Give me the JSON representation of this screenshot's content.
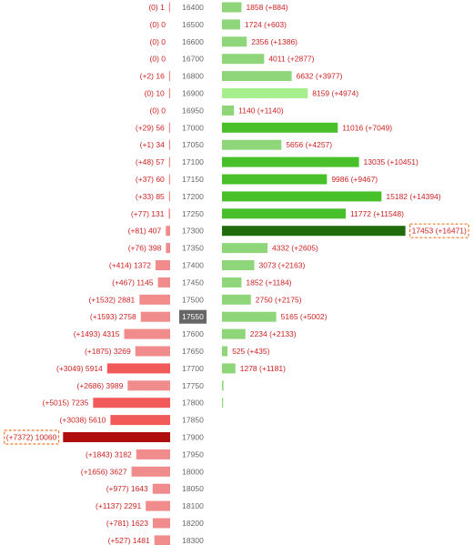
{
  "chart_data": {
    "type": "bar",
    "description_axis": "strike",
    "highlight_strike": "17550",
    "colors": {
      "put_light": "#f08c8c",
      "put_mid": "#f25a5a",
      "put_dark": "#b00d0d",
      "call_light": "#8fd67a",
      "call_mid": "#47c02a",
      "call_dark": "#1f6b0e",
      "label": "#cc2222",
      "highlight_bg": "#666666",
      "highlight_box": "#f07a2a"
    },
    "rows": [
      {
        "strike": "16400",
        "put": 1,
        "put_change": 0,
        "put_label": "(0) 1",
        "call": 1858,
        "call_change": 884,
        "call_label": "1858 (+884)"
      },
      {
        "strike": "16500",
        "put": 0,
        "put_change": 0,
        "put_label": "(0) 0",
        "call": 1724,
        "call_change": 603,
        "call_label": "1724 (+603)"
      },
      {
        "strike": "16600",
        "put": 0,
        "put_change": 0,
        "put_label": "(0) 0",
        "call": 2356,
        "call_change": 1386,
        "call_label": "2356 (+1386)"
      },
      {
        "strike": "16700",
        "put": 0,
        "put_change": 0,
        "put_label": "(0) 0",
        "call": 4011,
        "call_change": 2877,
        "call_label": "4011 (+2877)"
      },
      {
        "strike": "16800",
        "put": 16,
        "put_change": 2,
        "put_label": "(+2) 16",
        "call": 6632,
        "call_change": 3977,
        "call_label": "6632 (+3977)"
      },
      {
        "strike": "16900",
        "put": 10,
        "put_change": 0,
        "put_label": "(0) 10",
        "call": 8159,
        "call_change": 4974,
        "call_label": "8159 (+4974)"
      },
      {
        "strike": "16950",
        "put": 0,
        "put_change": 0,
        "put_label": "(0) 0",
        "call": 1140,
        "call_change": 1140,
        "call_label": "1140 (+1140)"
      },
      {
        "strike": "17000",
        "put": 56,
        "put_change": 29,
        "put_label": "(+29) 56",
        "call": 11016,
        "call_change": 7049,
        "call_label": "11016 (+7049)"
      },
      {
        "strike": "17050",
        "put": 34,
        "put_change": 1,
        "put_label": "(+1) 34",
        "call": 5656,
        "call_change": 4257,
        "call_label": "5656 (+4257)"
      },
      {
        "strike": "17100",
        "put": 57,
        "put_change": 48,
        "put_label": "(+48) 57",
        "call": 13035,
        "call_change": 10451,
        "call_label": "13035 (+10451)"
      },
      {
        "strike": "17150",
        "put": 60,
        "put_change": 37,
        "put_label": "(+37) 60",
        "call": 9986,
        "call_change": 9467,
        "call_label": "9986 (+9467)"
      },
      {
        "strike": "17200",
        "put": 85,
        "put_change": 33,
        "put_label": "(+33) 85",
        "call": 15182,
        "call_change": 14394,
        "call_label": "15182 (+14394)"
      },
      {
        "strike": "17250",
        "put": 131,
        "put_change": 77,
        "put_label": "(+77) 131",
        "call": 11772,
        "call_change": 11548,
        "call_label": "11772 (+11548)"
      },
      {
        "strike": "17300",
        "put": 407,
        "put_change": 81,
        "put_label": "(+81) 407",
        "call": 17453,
        "call_change": 16471,
        "call_label": "17453 (+16471)",
        "call_max": true
      },
      {
        "strike": "17350",
        "put": 398,
        "put_change": 76,
        "put_label": "(+76) 398",
        "call": 4332,
        "call_change": 2605,
        "call_label": "4332 (+2605)"
      },
      {
        "strike": "17400",
        "put": 1372,
        "put_change": 414,
        "put_label": "(+414) 1372",
        "call": 3073,
        "call_change": 2163,
        "call_label": "3073 (+2163)"
      },
      {
        "strike": "17450",
        "put": 1145,
        "put_change": 467,
        "put_label": "(+467) 1145",
        "call": 1852,
        "call_change": 1184,
        "call_label": "1852 (+1184)"
      },
      {
        "strike": "17500",
        "put": 2881,
        "put_change": 1532,
        "put_label": "(+1532) 2881",
        "call": 2750,
        "call_change": 2175,
        "call_label": "2750 (+2175)"
      },
      {
        "strike": "17550",
        "put": 2758,
        "put_change": 1593,
        "put_label": "(+1593) 2758",
        "call": 5165,
        "call_change": 5002,
        "call_label": "5165 (+5002)"
      },
      {
        "strike": "17600",
        "put": 4315,
        "put_change": 1493,
        "put_label": "(+1493) 4315",
        "call": 2234,
        "call_change": 2133,
        "call_label": "2234 (+2133)"
      },
      {
        "strike": "17650",
        "put": 3269,
        "put_change": 1875,
        "put_label": "(+1875) 3269",
        "call": 525,
        "call_change": 435,
        "call_label": "525 (+435)"
      },
      {
        "strike": "17700",
        "put": 5914,
        "put_change": 3049,
        "put_label": "(+3049) 5914",
        "call": 1278,
        "call_change": 1181,
        "call_label": "1278 (+1181)"
      },
      {
        "strike": "17750",
        "put": 3989,
        "put_change": 2686,
        "put_label": "(+2686) 3989",
        "call": 140,
        "call_change": null,
        "call_label": ""
      },
      {
        "strike": "17800",
        "put": 7235,
        "put_change": 5015,
        "put_label": "(+5015) 7235",
        "call": 60,
        "call_change": null,
        "call_label": ""
      },
      {
        "strike": "17850",
        "put": 5610,
        "put_change": 3038,
        "put_label": "(+3038) 5610",
        "call": 0,
        "call_change": null,
        "call_label": ""
      },
      {
        "strike": "17900",
        "put": 10060,
        "put_change": 7372,
        "put_label": "(+7372) 10060",
        "call": 0,
        "call_change": null,
        "call_label": "",
        "put_max": true
      },
      {
        "strike": "17950",
        "put": 3182,
        "put_change": 1843,
        "put_label": "(+1843) 3182",
        "call": 0,
        "call_change": null,
        "call_label": ""
      },
      {
        "strike": "18000",
        "put": 3627,
        "put_change": 1656,
        "put_label": "(+1656) 3627",
        "call": 0,
        "call_change": null,
        "call_label": ""
      },
      {
        "strike": "18050",
        "put": 1643,
        "put_change": 977,
        "put_label": "(+977) 1643",
        "call": 0,
        "call_change": null,
        "call_label": ""
      },
      {
        "strike": "18100",
        "put": 2291,
        "put_change": 1137,
        "put_label": "(+1137) 2291",
        "call": 0,
        "call_change": null,
        "call_label": ""
      },
      {
        "strike": "18200",
        "put": 1623,
        "put_change": 781,
        "put_label": "(+781) 1623",
        "call": 0,
        "call_change": null,
        "call_label": ""
      },
      {
        "strike": "18300",
        "put": 1481,
        "put_change": 527,
        "put_label": "(+527) 1481",
        "call": 0,
        "call_change": null,
        "call_label": ""
      }
    ]
  }
}
